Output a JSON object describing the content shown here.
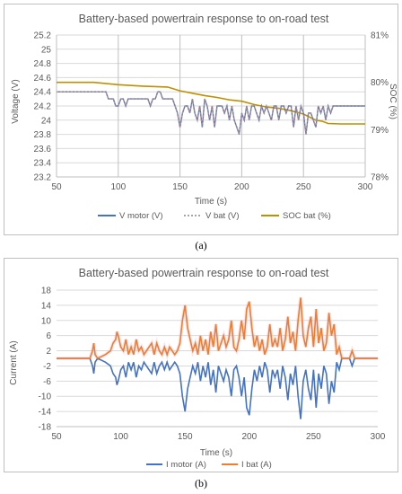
{
  "chart_data": [
    {
      "panel_label": "(a)",
      "type": "line",
      "title": "Battery-based powertrain response to on-road test",
      "xlabel": "Time (s)",
      "ylabel": "Voltage (V)",
      "y2label": "SOC (%)",
      "xlim": [
        50,
        300
      ],
      "xticks": [
        "50",
        "100",
        "150",
        "200",
        "250",
        "300"
      ],
      "ylim": [
        23.2,
        25.2
      ],
      "yticks": [
        "23.2",
        "23.4",
        "23.6",
        "23.8",
        "24",
        "24.2",
        "24.4",
        "24.6",
        "24.8",
        "25",
        "25.2"
      ],
      "y2lim": [
        78,
        81
      ],
      "y2ticks": [
        "78%",
        "79%",
        "80%",
        "81%"
      ],
      "grid": "horizontal",
      "legend_position": "bottom",
      "colors": {
        "motor": "#4472c4",
        "bat": "#a5a5a5",
        "soc": "#bf9000",
        "grid": "#d9d9d9",
        "axis": "#bfbfbf"
      },
      "series": [
        {
          "name": "V motor (V)",
          "axis": "left",
          "x": [
            50,
            90,
            92,
            96,
            98,
            100,
            102,
            104,
            106,
            108,
            110,
            112,
            114,
            116,
            118,
            120,
            122,
            124,
            126,
            128,
            130,
            132,
            134,
            136,
            138,
            140,
            142,
            144,
            146,
            148,
            150,
            152,
            154,
            156,
            158,
            160,
            162,
            164,
            166,
            168,
            170,
            172,
            174,
            176,
            178,
            180,
            182,
            184,
            186,
            188,
            190,
            192,
            194,
            196,
            198,
            200,
            202,
            204,
            206,
            208,
            210,
            212,
            214,
            216,
            218,
            220,
            222,
            224,
            226,
            228,
            230,
            232,
            234,
            236,
            238,
            240,
            242,
            244,
            246,
            248,
            250,
            252,
            254,
            256,
            258,
            260,
            262,
            264,
            266,
            268,
            270,
            272,
            274,
            276,
            278,
            280,
            300
          ],
          "values": [
            24.4,
            24.4,
            24.3,
            24.3,
            24.2,
            24.2,
            24.3,
            24.3,
            24.2,
            24.3,
            24.3,
            24.3,
            24.3,
            24.3,
            24.3,
            24.3,
            24.3,
            24.3,
            24.2,
            24.3,
            24.3,
            24.4,
            24.4,
            24.3,
            24.3,
            24.3,
            24.3,
            24.3,
            24.2,
            24.1,
            23.9,
            24.1,
            24.2,
            24.2,
            24.1,
            24.3,
            24.1,
            24.0,
            24.2,
            23.9,
            24.3,
            24.2,
            24.0,
            24.2,
            23.9,
            24.2,
            24.2,
            24.2,
            24.1,
            24.2,
            24.0,
            24.2,
            24.0,
            23.9,
            23.8,
            24.1,
            24.0,
            24.2,
            24.0,
            24.2,
            24.2,
            24.1,
            24.0,
            24.2,
            24.1,
            24.2,
            24.1,
            24.0,
            24.2,
            24.2,
            24.0,
            24.2,
            24.2,
            24.1,
            24.2,
            24.2,
            23.9,
            24.2,
            24.0,
            24.2,
            24.1,
            23.8,
            24.1,
            24.1,
            24.0,
            23.9,
            24.2,
            24.1,
            24.2,
            24.0,
            24.2,
            24.1,
            24.2,
            24.2,
            24.2,
            24.2,
            24.2
          ]
        },
        {
          "name": "V bat (V)",
          "axis": "left",
          "x": [
            50,
            90,
            92,
            96,
            98,
            100,
            102,
            104,
            106,
            108,
            110,
            112,
            114,
            116,
            118,
            120,
            122,
            124,
            126,
            128,
            130,
            132,
            134,
            136,
            138,
            140,
            142,
            144,
            146,
            148,
            150,
            152,
            154,
            156,
            158,
            160,
            162,
            164,
            166,
            168,
            170,
            172,
            174,
            176,
            178,
            180,
            182,
            184,
            186,
            188,
            190,
            192,
            194,
            196,
            198,
            200,
            202,
            204,
            206,
            208,
            210,
            212,
            214,
            216,
            218,
            220,
            222,
            224,
            226,
            228,
            230,
            232,
            234,
            236,
            238,
            240,
            242,
            244,
            246,
            248,
            250,
            252,
            254,
            256,
            258,
            260,
            262,
            264,
            266,
            268,
            270,
            272,
            274,
            276,
            278,
            280,
            300
          ],
          "values": [
            24.4,
            24.4,
            24.3,
            24.3,
            24.2,
            24.2,
            24.3,
            24.3,
            24.2,
            24.3,
            24.3,
            24.3,
            24.3,
            24.3,
            24.3,
            24.3,
            24.3,
            24.3,
            24.2,
            24.3,
            24.3,
            24.4,
            24.4,
            24.3,
            24.3,
            24.3,
            24.3,
            24.3,
            24.2,
            24.1,
            23.9,
            24.1,
            24.2,
            24.2,
            24.1,
            24.3,
            24.1,
            24.0,
            24.2,
            23.9,
            24.3,
            24.2,
            24.0,
            24.2,
            23.9,
            24.2,
            24.2,
            24.2,
            24.1,
            24.2,
            24.0,
            24.2,
            24.0,
            23.9,
            23.8,
            24.1,
            24.0,
            24.2,
            24.0,
            24.2,
            24.2,
            24.1,
            24.0,
            24.2,
            24.1,
            24.2,
            24.1,
            24.0,
            24.2,
            24.2,
            24.0,
            24.2,
            24.2,
            24.1,
            24.2,
            24.2,
            23.9,
            24.2,
            24.0,
            24.2,
            24.1,
            23.8,
            24.1,
            24.1,
            24.0,
            23.9,
            24.2,
            24.1,
            24.2,
            24.0,
            24.2,
            24.1,
            24.2,
            24.2,
            24.2,
            24.2,
            24.2
          ]
        },
        {
          "name": "SOC bat (%)",
          "axis": "right",
          "x": [
            50,
            80,
            100,
            120,
            140,
            150,
            160,
            170,
            180,
            190,
            200,
            210,
            220,
            230,
            240,
            250,
            260,
            265,
            270,
            280,
            290,
            300
          ],
          "values": [
            80.0,
            80.0,
            79.95,
            79.92,
            79.9,
            79.82,
            79.77,
            79.72,
            79.68,
            79.63,
            79.6,
            79.53,
            79.48,
            79.45,
            79.4,
            79.33,
            79.2,
            79.18,
            79.13,
            79.12,
            79.12,
            79.12
          ]
        }
      ]
    },
    {
      "panel_label": "(b)",
      "type": "line",
      "title": "Battery-based powertrain response to on-road test",
      "xlabel": "Time (s)",
      "ylabel": "Current (A)",
      "xlim": [
        50,
        300
      ],
      "xticks": [
        "50",
        "100",
        "150",
        "200",
        "250",
        "300"
      ],
      "ylim": [
        -18,
        18
      ],
      "yticks": [
        "-18",
        "-14",
        "-10",
        "-6",
        "-2",
        "2",
        "6",
        "10",
        "14",
        "18"
      ],
      "grid": "horizontal",
      "legend_position": "bottom",
      "colors": {
        "motor": "#4472c4",
        "bat": "#ed7d31",
        "grid": "#d9d9d9",
        "axis": "#bfbfbf"
      },
      "series": [
        {
          "name": "I motor (A)",
          "x": [
            50,
            76,
            78,
            79,
            80,
            82,
            88,
            92,
            94,
            96,
            97,
            98,
            100,
            102,
            104,
            106,
            108,
            110,
            112,
            114,
            116,
            118,
            120,
            122,
            124,
            126,
            128,
            130,
            132,
            134,
            136,
            138,
            140,
            142,
            144,
            146,
            148,
            150,
            152,
            154,
            156,
            158,
            160,
            162,
            164,
            166,
            168,
            170,
            172,
            174,
            176,
            178,
            180,
            182,
            184,
            186,
            188,
            190,
            192,
            194,
            196,
            198,
            200,
            202,
            204,
            206,
            208,
            210,
            212,
            214,
            216,
            218,
            220,
            222,
            224,
            226,
            228,
            230,
            232,
            234,
            236,
            238,
            240,
            242,
            244,
            246,
            248,
            250,
            252,
            254,
            256,
            258,
            260,
            262,
            264,
            266,
            268,
            270,
            272,
            274,
            276,
            278,
            280,
            282,
            300
          ],
          "values": [
            0,
            0,
            -2,
            -4,
            -1,
            0,
            -1,
            -2,
            -4,
            -5,
            -7,
            -6,
            -3,
            -2,
            -5,
            -1,
            -3,
            -1,
            -5,
            -2,
            -3,
            -1,
            -2,
            -3,
            -4,
            -1,
            -4,
            -2,
            -1,
            -3,
            -1,
            -3,
            -2,
            -1,
            -2,
            -4,
            -10,
            -14,
            -8,
            -5,
            -2,
            -4,
            -1,
            -6,
            -2,
            -5,
            -1,
            -7,
            -3,
            -9,
            -2,
            -4,
            -6,
            -3,
            -5,
            -10,
            -3,
            -2,
            -5,
            -10,
            -5,
            -13,
            -15,
            -8,
            -3,
            -6,
            -2,
            -5,
            -1,
            -3,
            -9,
            -3,
            -5,
            -3,
            -8,
            -2,
            -5,
            -11,
            -4,
            -7,
            -2,
            -10,
            -16,
            -6,
            -3,
            -8,
            -11,
            -3,
            -13,
            -4,
            -8,
            -2,
            -4,
            -12,
            -6,
            -9,
            -1,
            -3,
            0,
            0,
            0,
            0,
            -2,
            0,
            0
          ]
        },
        {
          "name": "I bat (A)",
          "x": [
            50,
            76,
            78,
            79,
            80,
            82,
            88,
            92,
            94,
            96,
            97,
            98,
            100,
            102,
            104,
            106,
            108,
            110,
            112,
            114,
            116,
            118,
            120,
            122,
            124,
            126,
            128,
            130,
            132,
            134,
            136,
            138,
            140,
            142,
            144,
            146,
            148,
            150,
            152,
            154,
            156,
            158,
            160,
            162,
            164,
            166,
            168,
            170,
            172,
            174,
            176,
            178,
            180,
            182,
            184,
            186,
            188,
            190,
            192,
            194,
            196,
            198,
            200,
            202,
            204,
            206,
            208,
            210,
            212,
            214,
            216,
            218,
            220,
            222,
            224,
            226,
            228,
            230,
            232,
            234,
            236,
            238,
            240,
            242,
            244,
            246,
            248,
            250,
            252,
            254,
            256,
            258,
            260,
            262,
            264,
            266,
            268,
            270,
            272,
            274,
            276,
            278,
            280,
            282,
            300
          ],
          "values": [
            0,
            0,
            2,
            4,
            1,
            0,
            1,
            2,
            4,
            5,
            7,
            6,
            3,
            2,
            5,
            1,
            3,
            1,
            5,
            2,
            3,
            1,
            2,
            3,
            4,
            1,
            4,
            2,
            1,
            3,
            1,
            3,
            2,
            1,
            2,
            4,
            10,
            14,
            8,
            5,
            2,
            4,
            1,
            6,
            2,
            5,
            1,
            7,
            3,
            9,
            2,
            4,
            6,
            3,
            5,
            10,
            3,
            2,
            5,
            10,
            5,
            13,
            15,
            8,
            3,
            6,
            2,
            5,
            1,
            3,
            9,
            3,
            5,
            3,
            8,
            2,
            5,
            11,
            4,
            7,
            2,
            10,
            16,
            6,
            3,
            8,
            11,
            3,
            13,
            4,
            8,
            2,
            4,
            12,
            6,
            9,
            1,
            3,
            0,
            0,
            0,
            0,
            2,
            0,
            0
          ]
        }
      ]
    }
  ]
}
